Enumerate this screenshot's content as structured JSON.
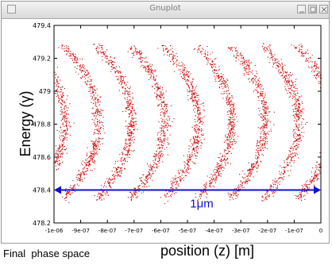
{
  "window": {
    "title": "Gnuplot"
  },
  "chart_data": {
    "type": "scatter",
    "title": "",
    "ylabel": "Energy (γ)",
    "xlabel": "position (z) [m]",
    "xlim": [
      -1e-06,
      0
    ],
    "ylim": [
      478.2,
      479.4
    ],
    "x_ticks": [
      "-1e-06",
      "-9e-07",
      "-8e-07",
      "-7e-07",
      "-6e-07",
      "-5e-07",
      "-4e-07",
      "-3e-07",
      "-2e-07",
      "-1e-07",
      "0"
    ],
    "y_ticks": [
      "478.2",
      "478.4",
      "478.6",
      "478.8",
      "479",
      "479.2",
      "479.4"
    ],
    "grid": false,
    "point_color": "#cc0000",
    "pattern": {
      "period_m": 1.25e-07,
      "first_crest_m": -9.6e-07,
      "energy_min": 478.35,
      "energy_max": 479.28,
      "description_of_form": "chevron bands (microbunching), opening to the right"
    },
    "annotation": {
      "label": "1μm",
      "color": "#1010cc",
      "arrow_y": 478.4,
      "arrow_x_from": -1e-06,
      "arrow_x_to": 0
    }
  },
  "captions": {
    "left": "Final  phase space"
  }
}
